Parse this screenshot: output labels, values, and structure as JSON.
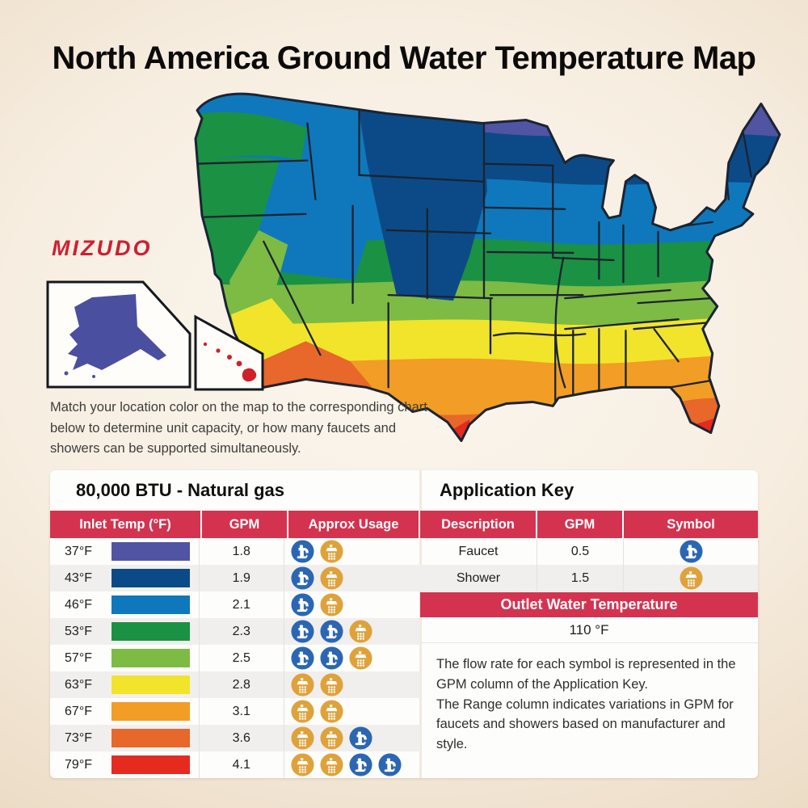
{
  "title": "North America Ground Water Temperature Map",
  "brand": "MIZUDO",
  "intro": "Match your location color on the map to the corresponding chart below to determine unit capacity, or how many faucets and showers can be supported simultaneously.",
  "map": {
    "type": "us-ground-water-temperature-choropleth",
    "insets": [
      "Alaska",
      "Hawaii"
    ],
    "zone_colors": {
      "37F": "#5054a3",
      "43F": "#0c4a87",
      "46F": "#0f78bc",
      "53F": "#1b9143",
      "57F": "#7dbb44",
      "63F": "#f2e42b",
      "67F": "#f29d26",
      "73F": "#e8672a",
      "79F": "#e52a20"
    }
  },
  "capacity_table": {
    "title": "80,000 BTU - Natural gas",
    "headers": [
      "Inlet Temp (°F)",
      "GPM",
      "Approx Usage"
    ],
    "rows": [
      {
        "temp": "37°F",
        "swatch": "#5054a3",
        "gpm": "1.8",
        "usage": [
          "faucet",
          "shower"
        ]
      },
      {
        "temp": "43°F",
        "swatch": "#0c4a87",
        "gpm": "1.9",
        "usage": [
          "faucet",
          "shower"
        ]
      },
      {
        "temp": "46°F",
        "swatch": "#0f78bc",
        "gpm": "2.1",
        "usage": [
          "faucet",
          "shower"
        ]
      },
      {
        "temp": "53°F",
        "swatch": "#1b9143",
        "gpm": "2.3",
        "usage": [
          "faucet",
          "faucet",
          "shower"
        ]
      },
      {
        "temp": "57°F",
        "swatch": "#7dbb44",
        "gpm": "2.5",
        "usage": [
          "faucet",
          "faucet",
          "shower"
        ]
      },
      {
        "temp": "63°F",
        "swatch": "#f2e42b",
        "gpm": "2.8",
        "usage": [
          "shower",
          "shower"
        ]
      },
      {
        "temp": "67°F",
        "swatch": "#f29d26",
        "gpm": "3.1",
        "usage": [
          "shower",
          "shower"
        ]
      },
      {
        "temp": "73°F",
        "swatch": "#e8672a",
        "gpm": "3.6",
        "usage": [
          "shower",
          "shower",
          "faucet"
        ]
      },
      {
        "temp": "79°F",
        "swatch": "#e52a20",
        "gpm": "4.1",
        "usage": [
          "shower",
          "shower",
          "faucet",
          "faucet"
        ]
      }
    ]
  },
  "application_key": {
    "title": "Application Key",
    "headers": [
      "Description",
      "GPM",
      "Symbol"
    ],
    "rows": [
      {
        "description": "Faucet",
        "gpm": "0.5",
        "symbol": "faucet"
      },
      {
        "description": "Shower",
        "gpm": "1.5",
        "symbol": "shower"
      }
    ],
    "outlet_banner": "Outlet Water Temperature",
    "outlet_value": "110 °F",
    "note_lines": [
      "The flow rate for each symbol is represented in the GPM column of the Application Key.",
      "The Range column indicates variations in GPM for faucets and showers based on manufacturer and style."
    ]
  },
  "icons": {
    "faucet_circle_color": "#2b66b3",
    "shower_circle_color": "#dfa23b"
  },
  "theme": {
    "header_red": "#d43350",
    "row_alt": "#f1efed",
    "background_cream": "#f7eee1"
  }
}
